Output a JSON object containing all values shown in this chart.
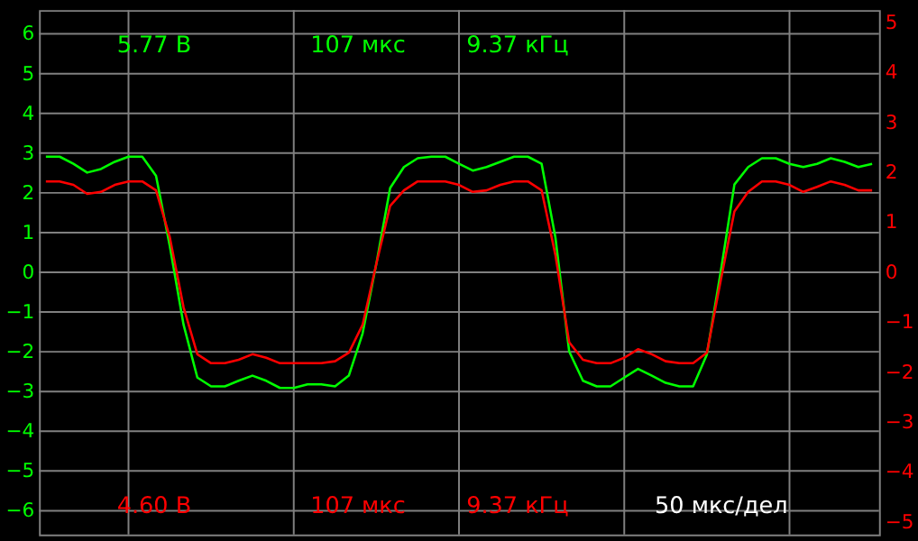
{
  "chart_data": {
    "type": "line",
    "categories": [
      null,
      null,
      null,
      null,
      null,
      null,
      null,
      null,
      null,
      null,
      null,
      null,
      null,
      null,
      null,
      null,
      null,
      null,
      null,
      null,
      null,
      null,
      null,
      null,
      null,
      null,
      null,
      null,
      null,
      null,
      null,
      null,
      null,
      null,
      null,
      null,
      null,
      null,
      null,
      null,
      null,
      null,
      null,
      null,
      null,
      null,
      null,
      null,
      null,
      null,
      null,
      null,
      null,
      null,
      null,
      null,
      null,
      null,
      null,
      null,
      null
    ],
    "series": [
      {
        "color": "#00ff00",
        "values": [
          2.91,
          2.91,
          2.73,
          2.51,
          2.6,
          2.78,
          2.91,
          2.91,
          2.43,
          0.66,
          -1.32,
          -2.65,
          -2.87,
          -2.87,
          -2.73,
          -2.6,
          -2.73,
          -2.91,
          -2.91,
          -2.82,
          -2.82,
          -2.87,
          -2.6,
          -1.54,
          0.22,
          2.12,
          2.65,
          2.87,
          2.91,
          2.91,
          2.73,
          2.56,
          2.65,
          2.78,
          2.91,
          2.91,
          2.73,
          0.88,
          -1.99,
          -2.73,
          -2.87,
          -2.87,
          -2.65,
          -2.43,
          -2.6,
          -2.78,
          -2.87,
          -2.87,
          -2.07,
          0,
          2.21,
          2.65,
          2.87,
          2.87,
          2.73,
          2.65,
          2.73,
          2.87,
          2.78,
          2.65,
          2.73
        ]
      },
      {
        "color": "#ff0000",
        "axis": "y2",
        "values": [
          1.82,
          1.82,
          1.75,
          1.57,
          1.61,
          1.75,
          1.82,
          1.82,
          1.64,
          0.7,
          -0.7,
          -1.64,
          -1.82,
          -1.82,
          -1.75,
          -1.64,
          -1.71,
          -1.82,
          -1.82,
          -1.82,
          -1.82,
          -1.78,
          -1.61,
          -1.05,
          0.17,
          1.33,
          1.64,
          1.82,
          1.82,
          1.82,
          1.75,
          1.61,
          1.64,
          1.75,
          1.82,
          1.82,
          1.64,
          0.35,
          -1.4,
          -1.75,
          -1.82,
          -1.82,
          -1.71,
          -1.54,
          -1.64,
          -1.78,
          -1.82,
          -1.82,
          -1.61,
          -0.17,
          1.22,
          1.61,
          1.82,
          1.82,
          1.75,
          1.61,
          1.71,
          1.82,
          1.75,
          1.64,
          1.64
        ]
      }
    ],
    "ylim": [
      -6.6,
      6.6
    ],
    "yticks": [
      -6,
      -5,
      -4,
      -3,
      -2,
      -1,
      0,
      1,
      2,
      3,
      4,
      5,
      6
    ],
    "y2lim": [
      -5.25,
      5.25
    ],
    "y2ticks": [
      -5,
      -4,
      -3,
      -2,
      -1,
      0,
      1,
      2,
      3,
      4,
      5
    ],
    "tick_labels": "y",
    "grid": true,
    "marker": "none",
    "line_style": "solid",
    "annotations": [
      "5.77 В",
      "107 мкс",
      "9.37 кГц",
      "4.60 В",
      "107 мкс",
      "9.37 кГц",
      "50 мкс/дел"
    ]
  }
}
